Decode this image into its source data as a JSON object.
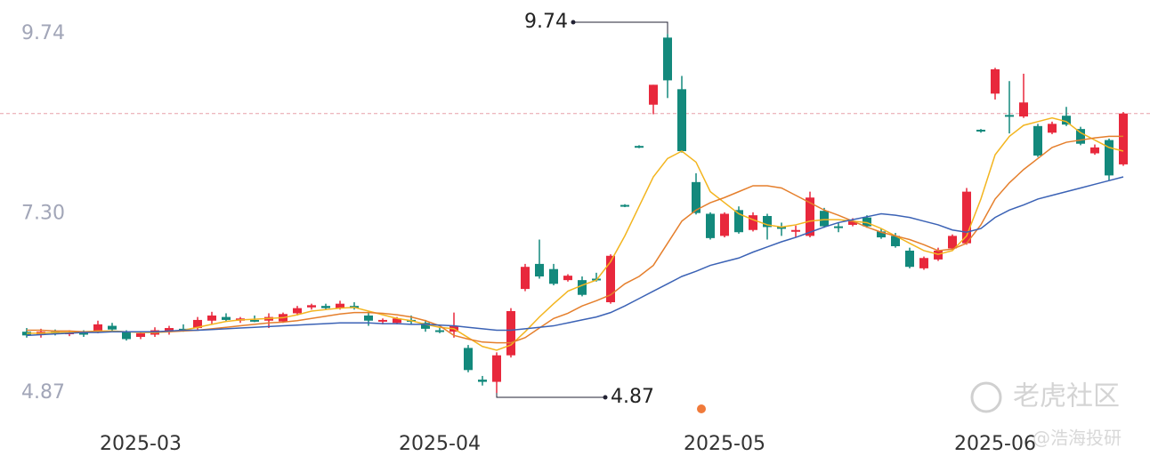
{
  "chart_data": {
    "type": "candlestick",
    "categories": [
      null,
      null,
      null,
      null,
      null,
      null,
      null,
      null,
      "2025-03",
      null,
      null,
      null,
      null,
      null,
      null,
      null,
      null,
      null,
      null,
      null,
      null,
      null,
      null,
      null,
      null,
      null,
      null,
      null,
      null,
      "2025-04",
      null,
      null,
      null,
      null,
      null,
      null,
      null,
      null,
      null,
      null,
      null,
      null,
      null,
      null,
      null,
      null,
      null,
      null,
      null,
      "2025-05",
      null,
      null,
      null,
      null,
      null,
      null,
      null,
      null,
      null,
      null,
      null,
      null,
      null,
      null,
      null,
      null,
      null,
      null,
      "2025-06",
      null,
      null,
      null,
      null,
      null,
      null,
      null,
      null,
      null
    ],
    "open": [
      5.7,
      5.66,
      5.7,
      5.68,
      5.69,
      5.7,
      5.78,
      5.7,
      5.63,
      5.66,
      5.7,
      5.74,
      5.75,
      5.85,
      5.9,
      5.85,
      5.86,
      5.85,
      5.84,
      5.95,
      6.03,
      6.05,
      6.02,
      6.05,
      5.92,
      5.84,
      5.82,
      5.86,
      5.82,
      5.72,
      5.7,
      5.48,
      5.05,
      5.02,
      5.38,
      6.28,
      6.62,
      6.55,
      6.4,
      6.4,
      6.42,
      6.1,
      7.42,
      8.22,
      8.78,
      9.69,
      8.99,
      7.73,
      7.3,
      7.0,
      7.35,
      7.08,
      7.27,
      7.12,
      7.06,
      7.0,
      7.34,
      7.13,
      7.15,
      7.25,
      7.06,
      7.0,
      6.8,
      6.56,
      6.68,
      6.83,
      6.9,
      8.44,
      8.93,
      8.64,
      8.62,
      8.49,
      8.4,
      8.63,
      8.45,
      8.12,
      8.3,
      7.97
    ],
    "high": [
      5.75,
      5.74,
      5.73,
      5.72,
      5.72,
      5.85,
      5.82,
      5.72,
      5.7,
      5.76,
      5.78,
      5.8,
      5.9,
      5.97,
      5.95,
      5.9,
      5.92,
      5.95,
      5.96,
      6.05,
      6.08,
      6.08,
      6.12,
      6.1,
      5.97,
      5.88,
      5.9,
      5.92,
      5.86,
      5.76,
      5.96,
      5.52,
      5.1,
      5.42,
      6.02,
      6.62,
      6.95,
      6.62,
      6.48,
      6.45,
      6.5,
      6.75,
      7.43,
      8.23,
      9.05,
      9.74,
      9.17,
      7.85,
      7.32,
      7.32,
      7.4,
      7.32,
      7.3,
      7.18,
      7.14,
      7.6,
      7.38,
      7.18,
      7.24,
      7.28,
      7.1,
      7.04,
      6.84,
      6.72,
      6.84,
      7.02,
      7.65,
      8.45,
      9.28,
      9.1,
      9.2,
      8.52,
      8.55,
      8.75,
      8.48,
      8.24,
      8.32,
      8.68
    ],
    "low": [
      5.62,
      5.62,
      5.65,
      5.64,
      5.63,
      5.68,
      5.7,
      5.58,
      5.6,
      5.63,
      5.66,
      5.7,
      5.72,
      5.8,
      5.84,
      5.82,
      5.83,
      5.75,
      5.82,
      5.92,
      6.0,
      6.0,
      6.0,
      6.0,
      5.78,
      5.8,
      5.8,
      5.8,
      5.7,
      5.68,
      5.62,
      5.15,
      4.97,
      4.87,
      5.35,
      6.25,
      6.42,
      6.33,
      6.38,
      6.18,
      6.38,
      6.08,
      7.39,
      8.19,
      8.65,
      8.87,
      8.13,
      7.29,
      6.95,
      6.98,
      7.03,
      7.06,
      6.95,
      7.0,
      6.98,
      6.98,
      7.11,
      7.05,
      7.13,
      7.11,
      6.96,
      6.84,
      6.56,
      6.54,
      6.66,
      6.81,
      6.88,
      8.4,
      8.85,
      8.39,
      8.6,
      8.07,
      8.38,
      8.49,
      8.23,
      8.1,
      7.75,
      7.95
    ],
    "close": [
      5.65,
      5.7,
      5.68,
      5.69,
      5.66,
      5.8,
      5.73,
      5.6,
      5.68,
      5.72,
      5.75,
      5.72,
      5.86,
      5.92,
      5.86,
      5.88,
      5.84,
      5.9,
      5.94,
      6.02,
      6.06,
      6.02,
      6.08,
      6.02,
      5.85,
      5.86,
      5.88,
      5.84,
      5.74,
      5.7,
      5.78,
      5.18,
      5.02,
      5.38,
      5.98,
      6.58,
      6.45,
      6.35,
      6.46,
      6.2,
      6.4,
      6.73,
      7.4,
      8.2,
      9.05,
      9.11,
      8.15,
      7.31,
      6.97,
      7.3,
      7.05,
      7.28,
      7.12,
      7.1,
      7.08,
      7.52,
      7.13,
      7.12,
      7.2,
      7.13,
      6.98,
      6.86,
      6.58,
      6.7,
      6.8,
      7.0,
      7.6,
      8.42,
      9.26,
      8.62,
      8.81,
      8.09,
      8.52,
      8.51,
      8.25,
      8.2,
      7.82,
      8.66
    ],
    "up_color": "#e8283c",
    "down_color": "#13897c",
    "lines": [
      {
        "color": "#f3b51f",
        "values": [
          5.68,
          5.68,
          5.69,
          5.69,
          5.7,
          5.71,
          5.71,
          5.7,
          5.69,
          5.69,
          5.7,
          5.72,
          5.76,
          5.8,
          5.84,
          5.86,
          5.87,
          5.88,
          5.89,
          5.93,
          5.98,
          6.0,
          6.02,
          6.03,
          5.98,
          5.93,
          5.88,
          5.85,
          5.8,
          5.76,
          5.74,
          5.62,
          5.5,
          5.45,
          5.52,
          5.7,
          5.9,
          6.08,
          6.25,
          6.33,
          6.4,
          6.65,
          7.0,
          7.4,
          7.8,
          8.05,
          8.15,
          8.0,
          7.6,
          7.45,
          7.3,
          7.22,
          7.15,
          7.12,
          7.15,
          7.2,
          7.22,
          7.22,
          7.2,
          7.18,
          7.1,
          7.0,
          6.9,
          6.8,
          6.75,
          6.8,
          7.0,
          7.5,
          8.1,
          8.35,
          8.5,
          8.55,
          8.6,
          8.55,
          8.4,
          8.3,
          8.2,
          8.15
        ]
      },
      {
        "color": "#e57f2c",
        "values": [
          5.72,
          5.72,
          5.71,
          5.71,
          5.7,
          5.7,
          5.7,
          5.7,
          5.7,
          5.7,
          5.7,
          5.71,
          5.72,
          5.74,
          5.76,
          5.78,
          5.8,
          5.82,
          5.83,
          5.85,
          5.88,
          5.91,
          5.94,
          5.96,
          5.96,
          5.95,
          5.93,
          5.9,
          5.85,
          5.78,
          5.65,
          5.6,
          5.56,
          5.55,
          5.55,
          5.62,
          5.75,
          5.88,
          5.95,
          6.05,
          6.12,
          6.2,
          6.35,
          6.45,
          6.6,
          6.9,
          7.2,
          7.35,
          7.45,
          7.52,
          7.6,
          7.68,
          7.68,
          7.65,
          7.55,
          7.45,
          7.35,
          7.28,
          7.2,
          7.12,
          7.05,
          7.0,
          6.95,
          6.88,
          6.8,
          6.82,
          6.9,
          7.15,
          7.5,
          7.72,
          7.9,
          8.05,
          8.2,
          8.27,
          8.3,
          8.33,
          8.35,
          8.35
        ]
      },
      {
        "color": "#3b62b5",
        "values": [
          5.65,
          5.66,
          5.67,
          5.68,
          5.69,
          5.69,
          5.7,
          5.7,
          5.7,
          5.7,
          5.71,
          5.72,
          5.72,
          5.73,
          5.74,
          5.75,
          5.76,
          5.77,
          5.78,
          5.79,
          5.8,
          5.81,
          5.82,
          5.82,
          5.82,
          5.81,
          5.81,
          5.8,
          5.8,
          5.79,
          5.78,
          5.76,
          5.74,
          5.72,
          5.72,
          5.74,
          5.76,
          5.78,
          5.82,
          5.86,
          5.9,
          5.96,
          6.05,
          6.15,
          6.25,
          6.35,
          6.45,
          6.52,
          6.6,
          6.65,
          6.7,
          6.78,
          6.85,
          6.92,
          6.98,
          7.05,
          7.12,
          7.18,
          7.22,
          7.26,
          7.3,
          7.28,
          7.25,
          7.2,
          7.15,
          7.08,
          7.05,
          7.1,
          7.25,
          7.35,
          7.42,
          7.5,
          7.55,
          7.6,
          7.65,
          7.7,
          7.75,
          7.8
        ]
      }
    ],
    "ylim": [
      4.4,
      10.2
    ],
    "yticks": [
      4.87,
      {
        "value": 7.3,
        "label": "7.30"
      },
      9.74
    ],
    "high_label": "9.74",
    "low_label": "4.87",
    "watermark": [
      "老虎社区",
      "@浩海投研"
    ]
  }
}
